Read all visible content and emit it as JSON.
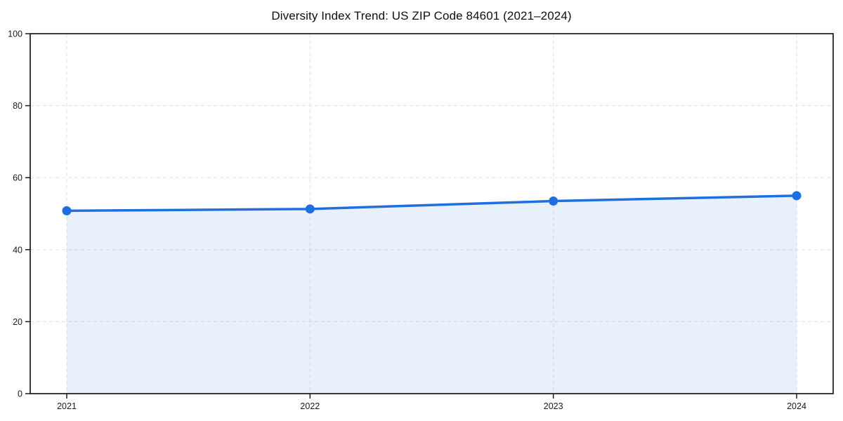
{
  "chart_data": {
    "type": "line",
    "title": "Diversity Index Trend: US ZIP Code 84601 (2021–2024)",
    "categories": [
      "2021",
      "2022",
      "2023",
      "2024"
    ],
    "values": [
      50.8,
      51.3,
      53.5,
      55.0
    ],
    "xlabel": "",
    "ylabel": "",
    "ylim": [
      0,
      100
    ],
    "yticks": [
      0,
      20,
      40,
      60,
      80,
      100
    ],
    "grid": "dashed-both-axes",
    "legend_position": "none",
    "area_fill_under_line": true,
    "marker_shape": "circle",
    "colors": {
      "line": "#1f6fe0",
      "marker": "#1f6fe0",
      "area_fill": "#1f6fe0",
      "area_fill_opacity": 0.1,
      "gridline": "#e0e0e0",
      "axis_spine": "#1a1a1a",
      "tick_text": "#1a1a1a",
      "background": "#ffffff"
    }
  }
}
